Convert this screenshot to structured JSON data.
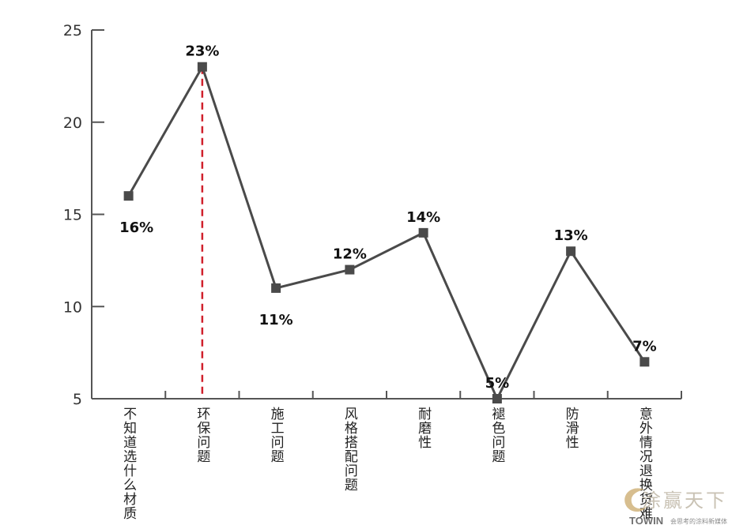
{
  "chart_data": {
    "type": "line",
    "categories": [
      "不知道选什么材质",
      "环保问题",
      "施工问题",
      "风格搭配问题",
      "耐磨性",
      "褪色问题",
      "防滑性",
      "意外情况退换货难"
    ],
    "values": [
      16,
      23,
      11,
      12,
      14,
      5,
      13,
      7
    ],
    "data_labels": [
      "16%",
      "23%",
      "11%",
      "12%",
      "14%",
      "5%",
      "13%",
      "7%"
    ],
    "y_ticks": [
      5,
      10,
      15,
      20,
      25
    ],
    "ylim": [
      5,
      25
    ],
    "highlight_index": 1,
    "title": "",
    "xlabel": "",
    "ylabel": "",
    "colors": {
      "line": "#4a4a4a",
      "marker": "#4a4a4a",
      "highlight": "#d0202c",
      "axis": "#555555"
    }
  },
  "watermark": {
    "name": "涂赢天下",
    "brand": "TOWIN",
    "slogan": "会思考的涂料新媒体"
  }
}
